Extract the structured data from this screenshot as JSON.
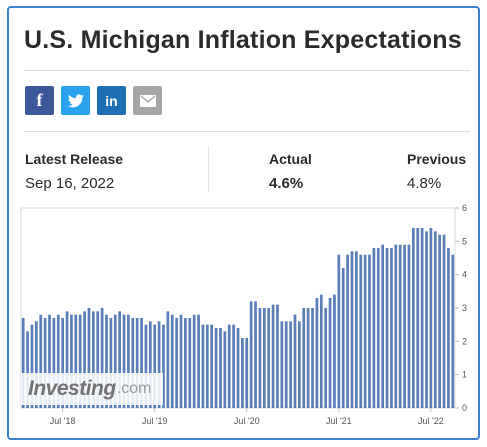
{
  "title": "U.S. Michigan Inflation Expectations",
  "share": {
    "facebook_icon": "f",
    "twitter_icon": "twitter-bird",
    "linkedin_icon": "in",
    "email_icon": "envelope"
  },
  "stats": {
    "latest_release_label": "Latest Release",
    "latest_release_value": "Sep 16, 2022",
    "actual_label": "Actual",
    "actual_value": "4.6%",
    "previous_label": "Previous",
    "previous_value": "4.8%"
  },
  "watermark": {
    "main": "Investing",
    "tld": ".com"
  },
  "colors": {
    "bar": "#5a7fb8",
    "border": "#3b7fd1",
    "facebook": "#3b5998",
    "twitter": "#2aa3ef",
    "linkedin": "#1f6fb5",
    "email": "#a6a6a6"
  },
  "chart_data": {
    "type": "bar",
    "xlabel": "",
    "ylabel": "",
    "ylim": [
      0,
      6
    ],
    "y_ticks": [
      "0",
      "1",
      "2",
      "3",
      "4",
      "5",
      "6"
    ],
    "x_ticks": [
      "Jul '18",
      "Jul '19",
      "Jul '20",
      "Jul '21",
      "Jul '22"
    ],
    "x_tick_index": [
      9,
      30,
      51,
      72,
      93
    ],
    "grid": false,
    "series": [
      {
        "values": [
          2.7,
          2.3,
          2.5,
          2.6,
          2.8,
          2.7,
          2.8,
          2.7,
          2.8,
          2.7,
          2.9,
          2.8,
          2.8,
          2.8,
          2.9,
          3.0,
          2.9,
          2.9,
          3.0,
          2.8,
          2.7,
          2.8,
          2.9,
          2.8,
          2.8,
          2.7,
          2.7,
          2.7,
          2.5,
          2.6,
          2.5,
          2.6,
          2.5,
          2.9,
          2.8,
          2.7,
          2.8,
          2.7,
          2.7,
          2.8,
          2.8,
          2.5,
          2.5,
          2.5,
          2.4,
          2.4,
          2.3,
          2.5,
          2.5,
          2.4,
          2.1,
          2.1,
          3.2,
          3.2,
          3.0,
          3.0,
          3.0,
          3.1,
          3.1,
          2.6,
          2.6,
          2.6,
          2.8,
          2.6,
          3.0,
          3.0,
          3.0,
          3.3,
          3.4,
          3.0,
          3.3,
          3.4,
          4.6,
          4.2,
          4.6,
          4.7,
          4.7,
          4.6,
          4.6,
          4.6,
          4.8,
          4.8,
          4.9,
          4.8,
          4.8,
          4.9,
          4.9,
          4.9,
          4.9,
          5.4,
          5.4,
          5.4,
          5.3,
          5.4,
          5.3,
          5.2,
          5.2,
          4.8,
          4.6
        ]
      }
    ]
  }
}
